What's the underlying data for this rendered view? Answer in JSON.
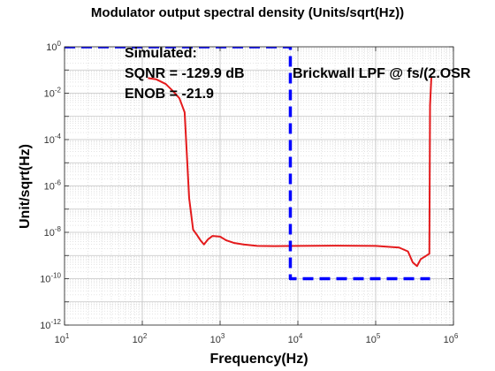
{
  "chart_data": {
    "type": "line",
    "title": "Modulator output spectral density (Units/sqrt(Hz))",
    "xlabel": "Frequency(Hz)",
    "ylabel": "Unit/sqrt(Hz)",
    "xscale": "log",
    "yscale": "log",
    "xlim": [
      10,
      1000000
    ],
    "ylim": [
      1e-12,
      1
    ],
    "grid": true,
    "x_ticks": [
      {
        "base": "10",
        "exp": "1"
      },
      {
        "base": "10",
        "exp": "2"
      },
      {
        "base": "10",
        "exp": "3"
      },
      {
        "base": "10",
        "exp": "4"
      },
      {
        "base": "10",
        "exp": "5"
      },
      {
        "base": "10",
        "exp": "6"
      }
    ],
    "y_ticks": [
      {
        "base": "10",
        "exp": "0"
      },
      {
        "base": "10",
        "exp": "-2"
      },
      {
        "base": "10",
        "exp": "-4"
      },
      {
        "base": "10",
        "exp": "-6"
      },
      {
        "base": "10",
        "exp": "-8"
      },
      {
        "base": "10",
        "exp": "-10"
      },
      {
        "base": "10",
        "exp": "-12"
      }
    ],
    "series": [
      {
        "color": "#e41a1c",
        "style": "solid",
        "x": [
          118,
          150,
          200,
          250,
          300,
          350,
          400,
          450,
          500,
          560,
          620,
          700,
          800,
          1000,
          1200,
          1500,
          2000,
          3000,
          5000,
          10000,
          30000,
          100000,
          200000,
          260000,
          300000,
          340000,
          380000,
          430000,
          490000,
          500000,
          520000
        ],
        "y": [
          0.045,
          0.04,
          0.025,
          0.012,
          0.006,
          0.0015,
          3e-07,
          1.3e-08,
          8e-09,
          4.5e-09,
          3e-09,
          5e-09,
          7e-09,
          6.5e-09,
          4.5e-09,
          3.5e-09,
          3e-09,
          2.6e-09,
          2.55e-09,
          2.6e-09,
          2.65e-09,
          2.6e-09,
          2.2e-09,
          1.5e-09,
          5e-10,
          3.5e-10,
          7e-10,
          9e-10,
          1.2e-09,
          0.003,
          0.05
        ]
      },
      {
        "color": "#0000ff",
        "style": "dashed",
        "x": [
          10,
          8000,
          8000,
          500000
        ],
        "y": [
          1,
          1,
          1e-10,
          1e-10
        ]
      }
    ],
    "annotations": {
      "simulated": "Simulated:",
      "sqnr": "SQNR = -129.9 dB",
      "enob": "ENOB = -21.9",
      "filter": "Brickwall LPF @ fs/(2.OSR"
    }
  }
}
